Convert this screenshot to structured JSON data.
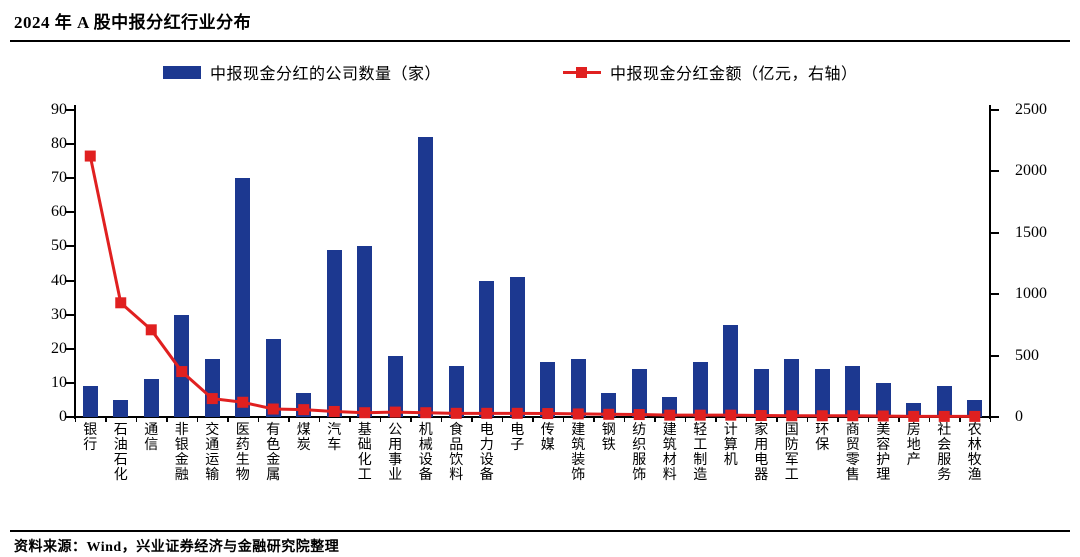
{
  "header": {
    "title": "2024 年 A 股中报分红行业分布"
  },
  "legend": {
    "bar_label": "中报现金分红的公司数量（家）",
    "line_label": "中报现金分红金额（亿元，右轴）"
  },
  "footer": {
    "source": "资料来源：Wind，兴业证券经济与金融研究院整理"
  },
  "colors": {
    "bar": "#1C3890",
    "line": "#E02020",
    "axis": "#000000",
    "text": "#000000"
  },
  "chart_data": {
    "type": "bar",
    "subtype": "bar+line-dual-axis",
    "title": "2024 年 A 股中报分红行业分布",
    "categories": [
      "银行",
      "石油石化",
      "通信",
      "非银金融",
      "交通运输",
      "医药生物",
      "有色金属",
      "煤炭",
      "汽车",
      "基础化工",
      "公用事业",
      "机械设备",
      "食品饮料",
      "电力设备",
      "电子",
      "传媒",
      "建筑装饰",
      "钢铁",
      "纺织服饰",
      "建筑材料",
      "轻工制造",
      "计算机",
      "家用电器",
      "国防军工",
      "环保",
      "商贸零售",
      "美容护理",
      "房地产",
      "社会服务",
      "农林牧渔"
    ],
    "series": [
      {
        "name": "中报现金分红的公司数量（家）",
        "type": "bar",
        "axis": "left",
        "color": "#1C3890",
        "values": [
          9,
          5,
          11,
          30,
          17,
          70,
          23,
          7,
          49,
          50,
          18,
          82,
          15,
          40,
          41,
          16,
          17,
          7,
          14,
          6,
          16,
          27,
          14,
          17,
          14,
          15,
          10,
          4,
          9,
          5
        ]
      },
      {
        "name": "中报现金分红金额（亿元，右轴）",
        "type": "line",
        "axis": "right",
        "color": "#E02020",
        "marker": "square",
        "values": [
          2125,
          930,
          710,
          370,
          150,
          120,
          65,
          60,
          45,
          35,
          40,
          35,
          30,
          30,
          30,
          28,
          25,
          22,
          20,
          15,
          15,
          15,
          12,
          10,
          10,
          10,
          8,
          5,
          5,
          5
        ]
      }
    ],
    "left_axis": {
      "min": 0,
      "max": 90,
      "step": 10,
      "ticks": [
        0,
        10,
        20,
        30,
        40,
        50,
        60,
        70,
        80,
        90
      ]
    },
    "right_axis": {
      "min": 0,
      "max": 2500,
      "step": 500,
      "ticks": [
        0,
        500,
        1000,
        1500,
        2000,
        2500
      ]
    },
    "grid": false,
    "legend_position": "top"
  }
}
